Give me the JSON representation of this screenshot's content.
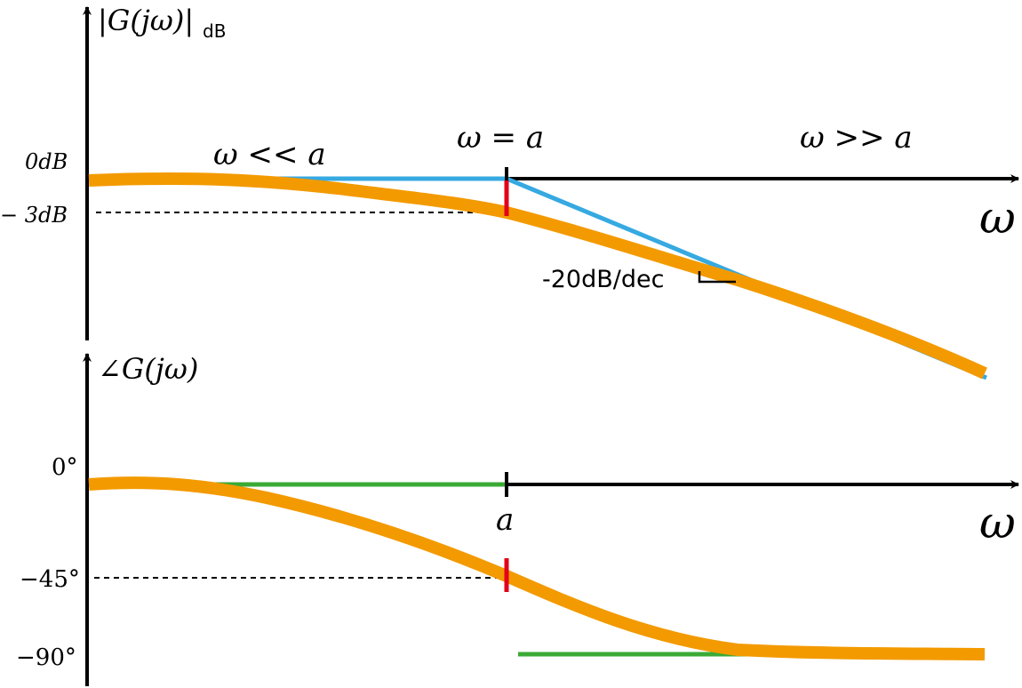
{
  "magnitude_plot": {
    "y_label_main": "|G(jω)|",
    "y_label_sub": "dB",
    "x_label": "ω",
    "tick_0db": "0dB",
    "tick_minus3db": "− 3dB",
    "region_low": "ω << a",
    "region_corner": "ω = a",
    "region_high": "ω >> a",
    "slope_label": "-20dB/dec"
  },
  "phase_plot": {
    "y_label": "∠G(jω)",
    "x_label": "ω",
    "tick_0": "0°",
    "tick_minus45": "−45°",
    "tick_minus90": "−90°",
    "corner_label": "a"
  },
  "colors": {
    "axis": "#000000",
    "exact_curve": "#F39A00",
    "magnitude_asymptote": "#36A9E1",
    "phase_asymptote": "#3AAA35",
    "corner_marker": "#E2001A"
  }
}
